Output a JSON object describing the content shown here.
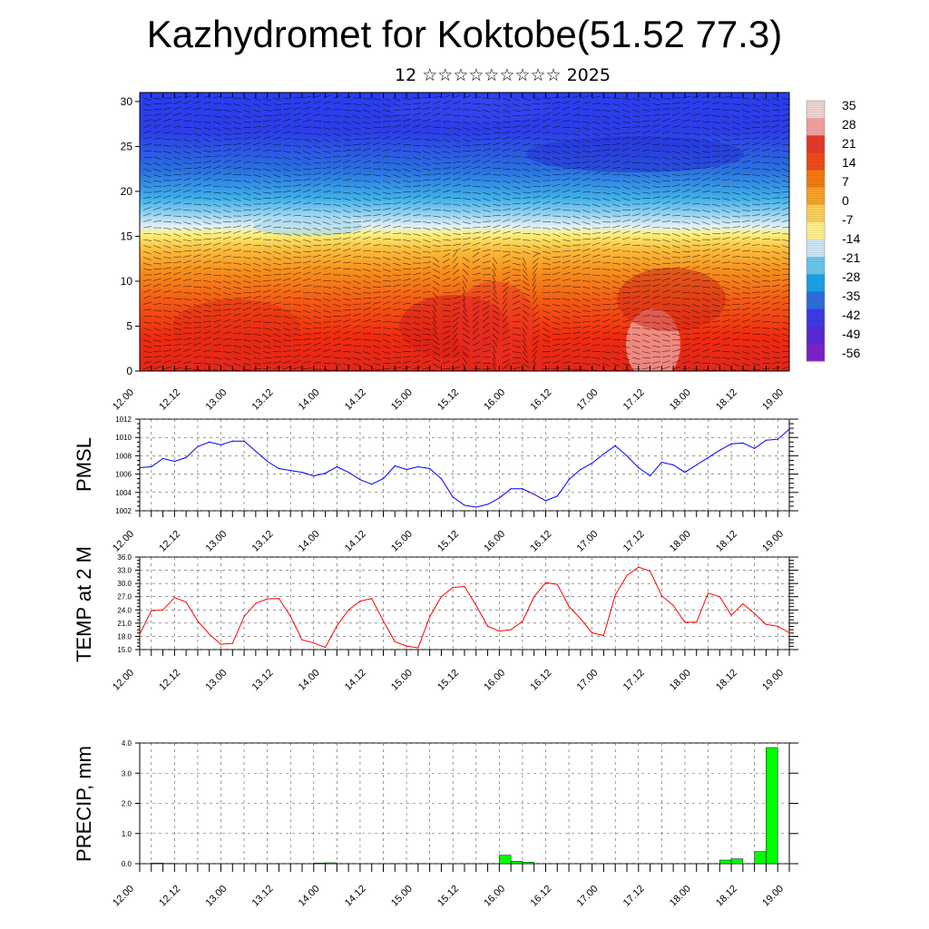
{
  "header": {
    "title": "Kazhydromet for Koktobe(51.52 77.3)",
    "subtitle": "12 ☆☆☆☆☆☆☆☆☆ 2025"
  },
  "colors": {
    "pmsl_line": "#0000ff",
    "temp_line": "#ff0000",
    "precip_bar": "#00ff00",
    "precip_bar_edge": "#000000"
  },
  "chart_data": [
    {
      "type": "heatmap",
      "panel": "cross-section",
      "title": "",
      "xlabel": "",
      "ylabel": "",
      "xticks": [
        "12.00",
        "12.12",
        "13.00",
        "13.12",
        "14.00",
        "14.12",
        "15.00",
        "15.12",
        "16.00",
        "16.12",
        "17.00",
        "17.12",
        "18.00",
        "18.12",
        "19.00"
      ],
      "yticks": [
        0,
        5,
        10,
        15,
        20,
        25,
        30
      ],
      "ylim": [
        0,
        31
      ],
      "colorbar": {
        "labels": [
          "35",
          "28",
          "21",
          "14",
          "7",
          "0",
          "-7",
          "-14",
          "-21",
          "-28",
          "-35",
          "-42",
          "-49",
          "-56"
        ],
        "colors": [
          "#f2d6d6",
          "#f4a3a3",
          "#e63a2a",
          "#f24b18",
          "#f77a12",
          "#f9a427",
          "#fcd25a",
          "#fff38c",
          "#cfe8f4",
          "#6cc7ef",
          "#1ba3e8",
          "#2d6fe0",
          "#3c3ce8",
          "#5a2ad8",
          "#7d22cc"
        ]
      },
      "vectors": "wind barbs / streamlines overlay",
      "grid": false
    },
    {
      "type": "line",
      "panel": "pmsl",
      "ylabel": "PMSL",
      "xticks": [
        "12.00",
        "12.12",
        "13.00",
        "13.12",
        "14.00",
        "14.12",
        "15.00",
        "15.12",
        "16.00",
        "16.12",
        "17.00",
        "17.12",
        "18.00",
        "18.12",
        "19.00"
      ],
      "yticks": [
        "1002",
        "1004",
        "1006",
        "1008",
        "1010",
        "1012"
      ],
      "ylim": [
        1002,
        1012
      ],
      "x": [
        0,
        3,
        6,
        9,
        12,
        15,
        18,
        21,
        24,
        27,
        30,
        33,
        36,
        39,
        42,
        45,
        48,
        51,
        54,
        57,
        60,
        63,
        66,
        69,
        72,
        75,
        78,
        81,
        84,
        87,
        90,
        93,
        96,
        99,
        102,
        105,
        108,
        111,
        114,
        117,
        120,
        123,
        126,
        129,
        132,
        135,
        138,
        141,
        144,
        147,
        150,
        153,
        156,
        159,
        162,
        165,
        168
      ],
      "series": [
        {
          "values": [
            1006.7,
            1006.8,
            1007.7,
            1007.4,
            1007.8,
            1009.0,
            1009.5,
            1009.2,
            1009.6,
            1009.6,
            1008.5,
            1007.4,
            1006.6,
            1006.4,
            1006.2,
            1005.8,
            1006.1,
            1006.8,
            1006.2,
            1005.4,
            1004.9,
            1005.5,
            1006.9,
            1006.5,
            1006.8,
            1006.6,
            1005.5,
            1003.5,
            1002.6,
            1002.4,
            1002.7,
            1003.4,
            1004.4,
            1004.4,
            1003.8,
            1003.1,
            1003.6,
            1005.4,
            1006.5,
            1007.2,
            1008.2,
            1009.1,
            1008.0,
            1006.7,
            1005.8,
            1007.3,
            1007.0,
            1006.2,
            1007.0,
            1007.8,
            1008.6,
            1009.3,
            1009.4,
            1008.8,
            1009.7,
            1009.8,
            1010.9
          ]
        }
      ],
      "grid": true
    },
    {
      "type": "line",
      "panel": "temp2m",
      "ylabel": "TEMP at 2 M",
      "xticks": [
        "12.00",
        "12.12",
        "13.00",
        "13.12",
        "14.00",
        "14.12",
        "15.00",
        "15.12",
        "16.00",
        "16.12",
        "17.00",
        "17.12",
        "18.00",
        "18.12",
        "19.00"
      ],
      "yticks": [
        "15.0",
        "18.0",
        "21.0",
        "24.0",
        "27.0",
        "30.0",
        "33.0",
        "36.0"
      ],
      "ylim": [
        15,
        36
      ],
      "x": [
        0,
        3,
        6,
        9,
        12,
        15,
        18,
        21,
        24,
        27,
        30,
        33,
        36,
        39,
        42,
        45,
        48,
        51,
        54,
        57,
        60,
        63,
        66,
        69,
        72,
        75,
        78,
        81,
        84,
        87,
        90,
        93,
        96,
        99,
        102,
        105,
        108,
        111,
        114,
        117,
        120,
        123,
        126,
        129,
        132,
        135,
        138,
        141,
        144,
        147,
        150,
        153,
        156,
        159,
        162,
        165,
        168
      ],
      "series": [
        {
          "values": [
            18.5,
            23.8,
            24.0,
            26.8,
            25.8,
            21.5,
            18.5,
            16.2,
            16.4,
            22.5,
            25.5,
            26.5,
            26.6,
            22.6,
            17.2,
            16.5,
            15.5,
            20.4,
            24.0,
            26.0,
            26.6,
            21.5,
            16.8,
            15.8,
            15.4,
            22.4,
            27.0,
            29.1,
            29.3,
            25.0,
            20.3,
            19.2,
            19.5,
            21.4,
            27.0,
            30.2,
            29.8,
            24.8,
            22.0,
            18.8,
            18.2,
            27.4,
            31.8,
            33.7,
            32.8,
            27.2,
            25.0,
            21.2,
            21.2,
            27.8,
            27.0,
            22.8,
            25.4,
            23.2,
            20.7,
            20.3,
            18.8
          ]
        }
      ],
      "grid": true
    },
    {
      "type": "bar",
      "panel": "precip",
      "ylabel": "PRECIP, mm",
      "xticks": [
        "12.00",
        "12.12",
        "13.00",
        "13.12",
        "14.00",
        "14.12",
        "15.00",
        "15.12",
        "16.00",
        "16.12",
        "17.00",
        "17.12",
        "18.00",
        "18.12",
        "19.00"
      ],
      "yticks": [
        "0.0",
        "1.0",
        "2.0",
        "3.0",
        "4.0"
      ],
      "ylim": [
        0,
        4
      ],
      "x": [
        6,
        9,
        12,
        15,
        18,
        21,
        24,
        27,
        30,
        33,
        36,
        39,
        42,
        45,
        48,
        51,
        54,
        57,
        60,
        63,
        66,
        69,
        72,
        75,
        78,
        81,
        84,
        87,
        90,
        93,
        96,
        99,
        102,
        105,
        108,
        111,
        114,
        117,
        120,
        123,
        126,
        129,
        132,
        135,
        138,
        141,
        144,
        147,
        150,
        153,
        156,
        159,
        162,
        165,
        168
      ],
      "series": [
        {
          "values": [
            0.02,
            0.01,
            0,
            0,
            0,
            0,
            0,
            0,
            0,
            0,
            0,
            0,
            0,
            0,
            0.02,
            0.03,
            0,
            0,
            0,
            0,
            0,
            0,
            0,
            0,
            0,
            0,
            0,
            0,
            0,
            0,
            0.28,
            0.08,
            0.05,
            0,
            0,
            0,
            0,
            0,
            0,
            0,
            0,
            0,
            0,
            0,
            0,
            0,
            0,
            0,
            0,
            0.12,
            0.16,
            0,
            0.4,
            3.85,
            0
          ]
        }
      ],
      "grid": true
    }
  ]
}
